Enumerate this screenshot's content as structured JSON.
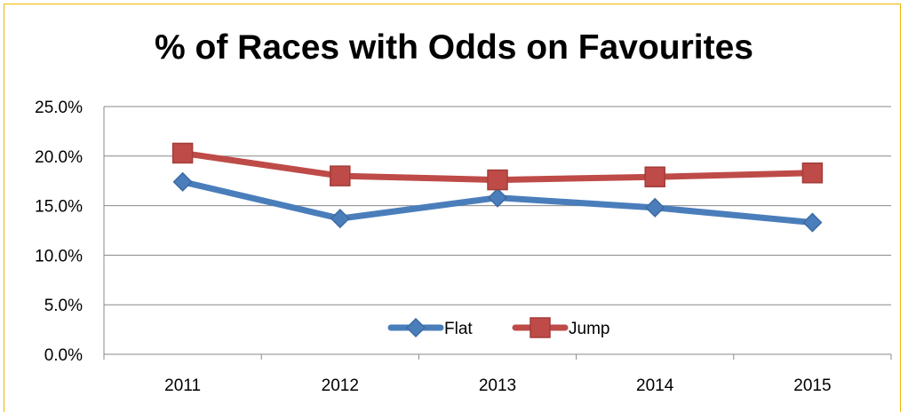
{
  "chart_data": {
    "type": "line",
    "title": "% of Races with Odds on Favourites",
    "xlabel": "",
    "ylabel": "",
    "categories": [
      "2011",
      "2012",
      "2013",
      "2014",
      "2015"
    ],
    "ylim": [
      0,
      25
    ],
    "y_ticks": [
      "0.0%",
      "5.0%",
      "10.0%",
      "15.0%",
      "20.0%",
      "25.0%"
    ],
    "grid": true,
    "legend": "bottom-center",
    "series": [
      {
        "name": "Flat",
        "values": [
          17.4,
          13.7,
          15.8,
          14.8,
          13.3
        ],
        "color": "#4a7ebb",
        "marker": "diamond"
      },
      {
        "name": "Jump",
        "values": [
          20.3,
          18.0,
          17.6,
          17.9,
          18.3
        ],
        "color": "#be4b48",
        "marker": "square"
      }
    ]
  }
}
